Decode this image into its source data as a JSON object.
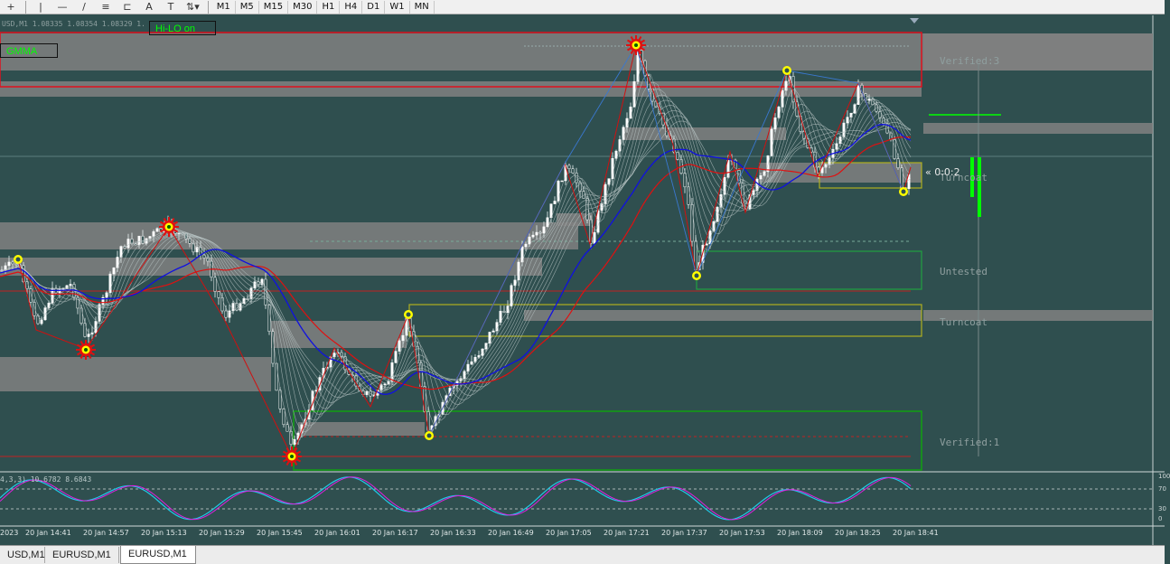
{
  "toolbar": {
    "timeframes": [
      "M1",
      "M5",
      "M15",
      "M30",
      "H1",
      "H4",
      "D1",
      "W1",
      "MN"
    ],
    "tool_icons": [
      "crosshair-icon",
      "vertical-line-icon",
      "horizontal-line-icon",
      "trendline-icon",
      "fibonacci-icon",
      "channel-icon",
      "text-icon",
      "text-label-icon",
      "arrows-icon"
    ],
    "text_tool_label": "A",
    "label_tool_label": "T"
  },
  "chart": {
    "header_info": "USD,M1  1.08335 1.08354 1.08329 1.",
    "hilo_button": "Hi-LO on",
    "gmma_label": "GMMA",
    "timer": "« 0:0:2",
    "zones": [
      {
        "label": "Verified:3"
      },
      {
        "label": "Turncoat"
      },
      {
        "label": "Untested"
      },
      {
        "label": "Turncoat"
      },
      {
        "label": "Verified:1"
      }
    ],
    "oscillator_info": "4,3,3) 10.6782 8.6843",
    "oscillator_levels": [
      "100",
      "70",
      "30",
      "0"
    ],
    "time_labels": [
      "2023",
      "20 Jan 14:41",
      "20 Jan 14:57",
      "20 Jan 15:13",
      "20 Jan 15:29",
      "20 Jan 15:45",
      "20 Jan 16:01",
      "20 Jan 16:17",
      "20 Jan 16:33",
      "20 Jan 16:49",
      "20 Jan 17:05",
      "20 Jan 17:21",
      "20 Jan 17:37",
      "20 Jan 17:53",
      "20 Jan 18:09",
      "20 Jan 18:25",
      "20 Jan 18:41"
    ]
  },
  "tabs": [
    {
      "label": "USD,M1"
    },
    {
      "label": "EURUSD,M1"
    },
    {
      "label": "EURUSD,M1"
    }
  ],
  "colors": {
    "background": "#2f4f4f",
    "zone_fill": "#808080",
    "ema_red": "#e01010",
    "ema_blue": "#1010e0",
    "zigzag": "#d01010",
    "stoch_main": "#20c8e8",
    "stoch_signal": "#e020e0",
    "verified_box": "#e0101e",
    "turncoat_box": "#b0b020",
    "untested_box": "#20a040",
    "verified1_box": "#10a010",
    "highlight_green": "#00ff00"
  }
}
